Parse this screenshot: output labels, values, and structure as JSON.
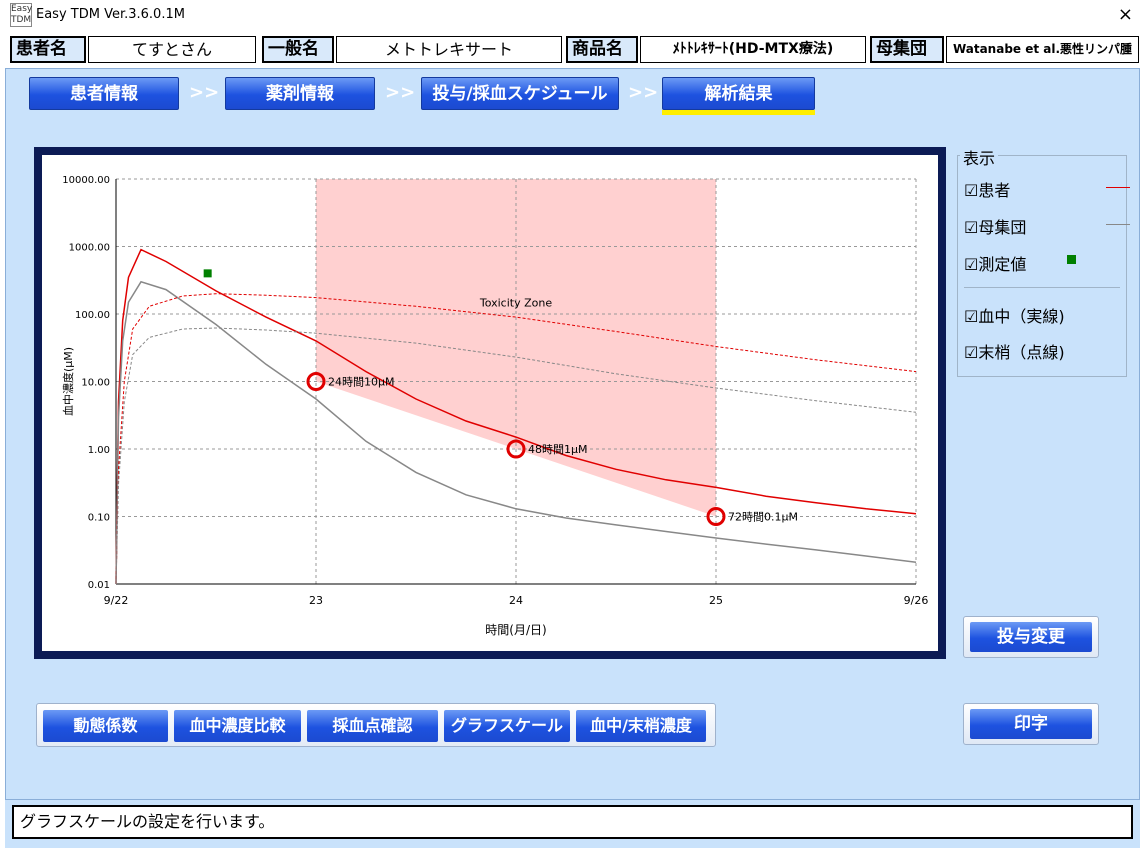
{
  "window": {
    "logo_text": "Easy TDM",
    "title": "Easy TDM Ver.3.6.0.1M",
    "close": "×"
  },
  "header": {
    "patient_label": "患者名",
    "patient_value": "てすとさん",
    "generic_label": "一般名",
    "generic_value": "メトトレキサート",
    "product_label": "商品名",
    "product_value": "ﾒﾄﾄﾚｷｻｰﾄ(HD-MTX療法)",
    "population_label": "母集団",
    "population_value": "Watanabe et al.悪性リンパ腫"
  },
  "nav": {
    "tabs": [
      "患者情報",
      "薬剤情報",
      "投与/採血スケジュール",
      "解析結果"
    ],
    "separator": ">>",
    "active_index": 3
  },
  "legend": {
    "title": "表示",
    "items": [
      {
        "label": "☑患者",
        "color": "#e00000",
        "marker": "line"
      },
      {
        "label": "☑母集団",
        "color": "#888888",
        "marker": "line"
      },
      {
        "label": "☑測定値",
        "color": "#008000",
        "marker": "square"
      },
      {
        "label": "☑血中（実線)",
        "marker": "none"
      },
      {
        "label": "☑末梢（点線)",
        "marker": "none"
      }
    ]
  },
  "buttons": {
    "dose_change": "投与変更",
    "print": "印字",
    "bottom": [
      "動態係数",
      "血中濃度比較",
      "採血点確認",
      "グラフスケール",
      "血中/末梢濃度"
    ]
  },
  "status_text": "グラフスケールの設定を行います。",
  "chart_data": {
    "type": "line",
    "scale": "log",
    "ylabel": "血中濃度(μM)",
    "xlabel": "時間(月/日)",
    "x_ticks": [
      {
        "x": 0,
        "label": "9/22"
      },
      {
        "x": 24,
        "label": "23"
      },
      {
        "x": 48,
        "label": "24"
      },
      {
        "x": 72,
        "label": "25"
      },
      {
        "x": 96,
        "label": "9/26"
      }
    ],
    "y_ticks": [
      {
        "y": 0.01,
        "label": "0.01"
      },
      {
        "y": 0.1,
        "label": "0.10"
      },
      {
        "y": 1,
        "label": "1.00"
      },
      {
        "y": 10,
        "label": "10.00"
      },
      {
        "y": 100,
        "label": "100.00"
      },
      {
        "y": 1000,
        "label": "1000.00"
      },
      {
        "y": 10000,
        "label": "10000.00"
      }
    ],
    "xlim": [
      0,
      96
    ],
    "ylim": [
      0.01,
      10000
    ],
    "grid": true,
    "toxicity_zone": {
      "label": "Toxicity Zone",
      "x_start": 24,
      "x_end": 72,
      "lower": [
        [
          24,
          10
        ],
        [
          48,
          1
        ],
        [
          72,
          0.1
        ]
      ],
      "color": "#ffd0d0"
    },
    "thresholds": [
      {
        "x": 24,
        "y": 10,
        "label": "24時間10μM"
      },
      {
        "x": 48,
        "y": 1,
        "label": "48時間1μM"
      },
      {
        "x": 72,
        "y": 0.1,
        "label": "72時間0.1μM"
      }
    ],
    "measured": [
      {
        "x": 11,
        "y": 400,
        "color": "#008000"
      }
    ],
    "series": [
      {
        "name": "患者",
        "style": "solid",
        "color": "#e00000",
        "points": [
          [
            0,
            0.01
          ],
          [
            0.3,
            5
          ],
          [
            0.8,
            80
          ],
          [
            1.5,
            350
          ],
          [
            3,
            900
          ],
          [
            6,
            600
          ],
          [
            12,
            220
          ],
          [
            18,
            90
          ],
          [
            24,
            40
          ],
          [
            30,
            14
          ],
          [
            36,
            5.5
          ],
          [
            42,
            2.6
          ],
          [
            48,
            1.5
          ],
          [
            54,
            0.8
          ],
          [
            60,
            0.5
          ],
          [
            66,
            0.35
          ],
          [
            72,
            0.27
          ],
          [
            78,
            0.2
          ],
          [
            84,
            0.16
          ],
          [
            90,
            0.13
          ],
          [
            96,
            0.11
          ]
        ]
      },
      {
        "name": "母集団",
        "style": "solid",
        "color": "#888888",
        "points": [
          [
            0,
            0.01
          ],
          [
            0.3,
            3
          ],
          [
            0.8,
            40
          ],
          [
            1.5,
            150
          ],
          [
            3,
            300
          ],
          [
            6,
            230
          ],
          [
            12,
            70
          ],
          [
            18,
            18
          ],
          [
            24,
            5.5
          ],
          [
            30,
            1.3
          ],
          [
            36,
            0.45
          ],
          [
            42,
            0.21
          ],
          [
            48,
            0.13
          ],
          [
            54,
            0.095
          ],
          [
            60,
            0.075
          ],
          [
            66,
            0.06
          ],
          [
            72,
            0.048
          ],
          [
            78,
            0.039
          ],
          [
            84,
            0.032
          ],
          [
            90,
            0.026
          ],
          [
            96,
            0.021
          ]
        ]
      },
      {
        "name": "患者 末梢",
        "style": "dashed",
        "color": "#e00000",
        "points": [
          [
            0,
            0.01
          ],
          [
            0.3,
            0.5
          ],
          [
            1,
            10
          ],
          [
            2,
            60
          ],
          [
            4,
            130
          ],
          [
            8,
            185
          ],
          [
            12,
            200
          ],
          [
            18,
            190
          ],
          [
            24,
            175
          ],
          [
            36,
            130
          ],
          [
            48,
            90
          ],
          [
            60,
            55
          ],
          [
            72,
            33
          ],
          [
            84,
            21
          ],
          [
            96,
            14
          ]
        ]
      },
      {
        "name": "母集団 末梢",
        "style": "dashed",
        "color": "#888888",
        "points": [
          [
            0,
            0.01
          ],
          [
            0.3,
            0.3
          ],
          [
            1,
            5
          ],
          [
            2,
            25
          ],
          [
            4,
            45
          ],
          [
            8,
            60
          ],
          [
            12,
            62
          ],
          [
            18,
            58
          ],
          [
            24,
            52
          ],
          [
            36,
            37
          ],
          [
            48,
            23
          ],
          [
            60,
            13
          ],
          [
            72,
            8
          ],
          [
            84,
            5.2
          ],
          [
            96,
            3.5
          ]
        ]
      }
    ]
  }
}
